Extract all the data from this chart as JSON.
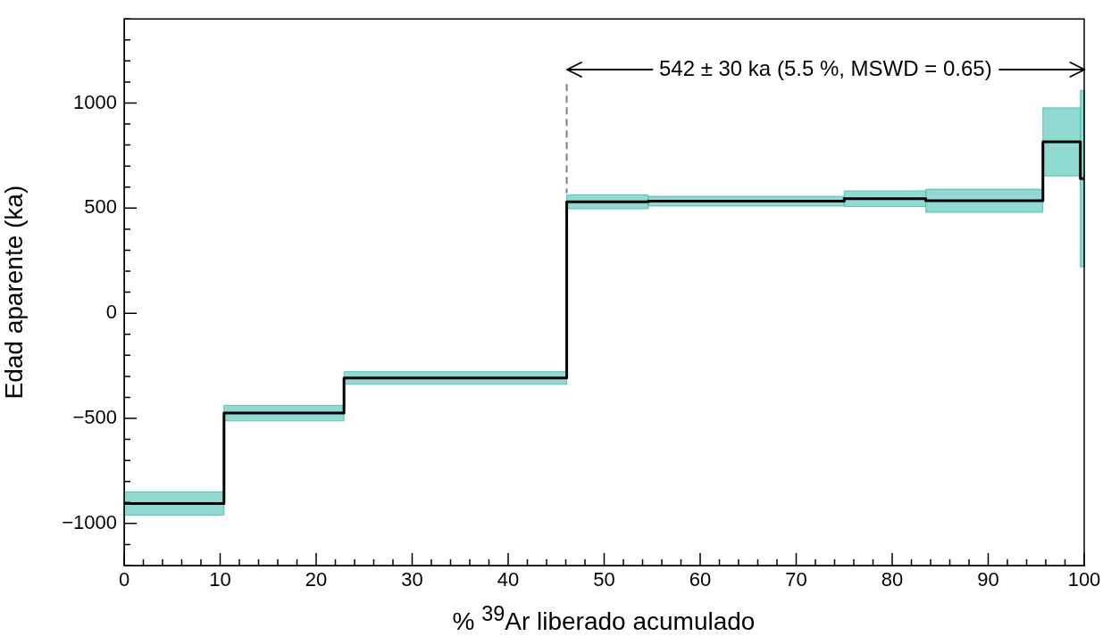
{
  "chart_data": {
    "type": "step",
    "xlabel": "% $^{39}$Ar liberado acumulado",
    "ylabel": "Edad aparente (ka)",
    "xlim": [
      0,
      100
    ],
    "ylim": [
      -1200,
      1400
    ],
    "xticks": [
      0,
      {
        "value": 2,
        "label": null
      },
      {
        "value": 4,
        "label": null
      },
      {
        "value": 6,
        "label": null
      },
      {
        "value": 8,
        "label": null
      },
      10,
      {
        "value": 12,
        "label": null
      },
      {
        "value": 14,
        "label": null
      },
      {
        "value": 16,
        "label": null
      },
      {
        "value": 18,
        "label": null
      },
      20,
      {
        "value": 22,
        "label": null
      },
      {
        "value": 24,
        "label": null
      },
      {
        "value": 26,
        "label": null
      },
      {
        "value": 28,
        "label": null
      },
      30,
      {
        "value": 32,
        "label": null
      },
      {
        "value": 34,
        "label": null
      },
      {
        "value": 36,
        "label": null
      },
      {
        "value": 38,
        "label": null
      },
      40,
      {
        "value": 42,
        "label": null
      },
      {
        "value": 44,
        "label": null
      },
      {
        "value": 46,
        "label": null
      },
      {
        "value": 48,
        "label": null
      },
      50,
      {
        "value": 52,
        "label": null
      },
      {
        "value": 54,
        "label": null
      },
      {
        "value": 56,
        "label": null
      },
      {
        "value": 58,
        "label": null
      },
      60,
      {
        "value": 62,
        "label": null
      },
      {
        "value": 64,
        "label": null
      },
      {
        "value": 66,
        "label": null
      },
      {
        "value": 68,
        "label": null
      },
      70,
      {
        "value": 72,
        "label": null
      },
      {
        "value": 74,
        "label": null
      },
      {
        "value": 76,
        "label": null
      },
      {
        "value": 78,
        "label": null
      },
      80,
      {
        "value": 82,
        "label": null
      },
      {
        "value": 84,
        "label": null
      },
      {
        "value": 86,
        "label": null
      },
      {
        "value": 88,
        "label": null
      },
      90,
      {
        "value": 92,
        "label": null
      },
      {
        "value": 94,
        "label": null
      },
      {
        "value": 96,
        "label": null
      },
      {
        "value": 98,
        "label": null
      },
      100
    ],
    "yticks": [
      {
        "value": -1200,
        "label": null
      },
      {
        "value": -1100,
        "label": null
      },
      {
        "value": -1000,
        "label": "−1000"
      },
      {
        "value": -900,
        "label": null
      },
      {
        "value": -800,
        "label": null
      },
      {
        "value": -700,
        "label": null
      },
      {
        "value": -600,
        "label": null
      },
      {
        "value": -500,
        "label": "−500"
      },
      {
        "value": -400,
        "label": null
      },
      {
        "value": -300,
        "label": null
      },
      {
        "value": -200,
        "label": null
      },
      {
        "value": -100,
        "label": null
      },
      0,
      {
        "value": 100,
        "label": null
      },
      {
        "value": 200,
        "label": null
      },
      {
        "value": 300,
        "label": null
      },
      {
        "value": 400,
        "label": null
      },
      500,
      {
        "value": 600,
        "label": null
      },
      {
        "value": 700,
        "label": null
      },
      {
        "value": 800,
        "label": null
      },
      {
        "value": 900,
        "label": null
      },
      1000,
      {
        "value": 1100,
        "label": null
      },
      {
        "value": 1200,
        "label": null
      },
      {
        "value": 1300,
        "label": null
      },
      {
        "value": 1400,
        "label": null
      }
    ],
    "series": [
      {
        "color": "#000000",
        "x": [
          0,
          10.4,
          22.9,
          46.1,
          54.6,
          75.0,
          83.5,
          95.7,
          99.6,
          100
        ],
        "values": [
          -905,
          -475,
          -308,
          530,
          533,
          545,
          535,
          815,
          640,
          640
        ],
        "lower": [
          -960,
          -512,
          -338,
          497,
          510,
          508,
          480,
          653,
          220,
          220
        ],
        "upper": [
          -850,
          -438,
          -278,
          563,
          556,
          582,
          590,
          977,
          1060,
          1060
        ]
      }
    ],
    "ref_lines": [
      {
        "axis": "x",
        "value": 46.1,
        "color": "#808080",
        "line_style": "dashed"
      }
    ],
    "annotations": [
      "542 ± 30 ka (5.5 %, MSWD = 0.65)"
    ],
    "grid": false,
    "legend": false,
    "marker": "none",
    "line_style": "solid"
  }
}
